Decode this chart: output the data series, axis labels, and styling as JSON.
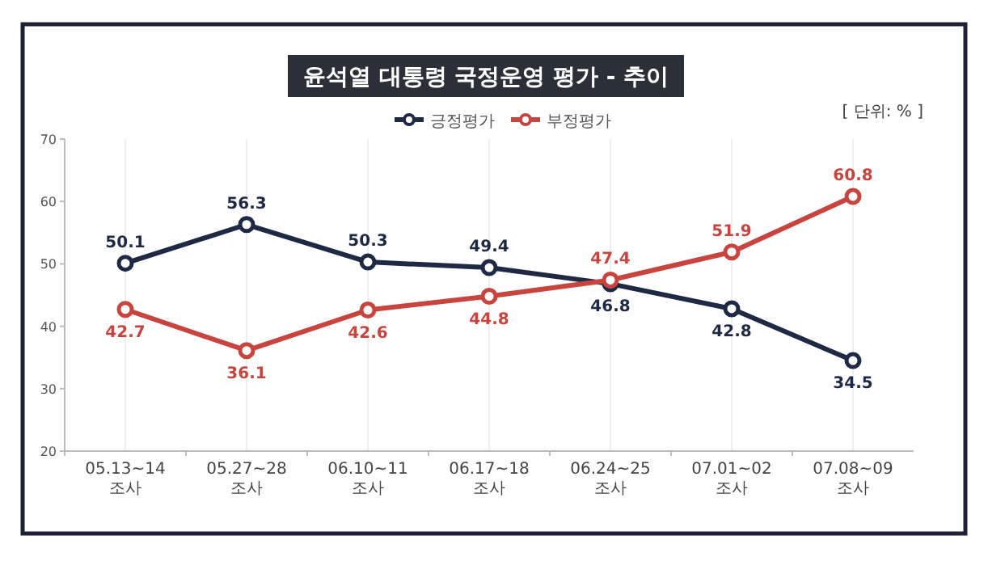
{
  "chart_data": {
    "type": "line",
    "title": "윤석열 대통령 국정운영 평가 - 추이",
    "annotations": [
      "[ 단위: % ]"
    ],
    "categories": [
      "05.13~14\n조사",
      "05.27~28\n조사",
      "06.10~11\n조사",
      "06.17~18\n조사",
      "06.24~25\n조사",
      "07.01~02\n조사",
      "07.08~09\n조사"
    ],
    "series": [
      {
        "name": "긍정평가",
        "color": "#1e2a44",
        "values": [
          50.1,
          56.3,
          50.3,
          49.4,
          46.8,
          42.8,
          34.5
        ]
      },
      {
        "name": "부정평가",
        "color": "#c8453f",
        "values": [
          42.7,
          36.1,
          42.6,
          44.8,
          47.4,
          51.9,
          60.8
        ]
      }
    ],
    "ylim": [
      20,
      70
    ],
    "yticks": [
      20,
      30,
      40,
      50,
      60,
      70
    ],
    "grid": "x",
    "legend": "top",
    "marker": "circle",
    "line_style": "solid",
    "data_labels": true
  }
}
